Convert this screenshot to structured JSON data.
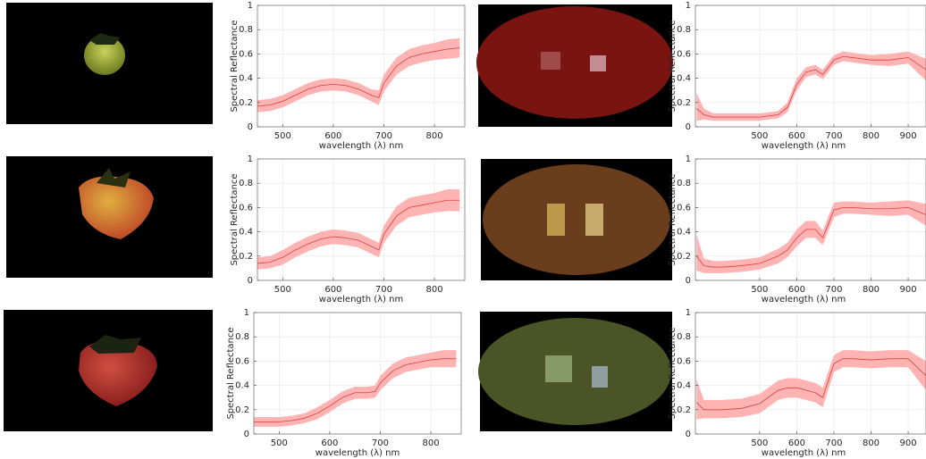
{
  "chart_data": [
    {
      "type": "line",
      "xlabel": "wavelength (λ) nm",
      "ylabel": "Spectral Reflectance",
      "xlim": [
        450,
        860
      ],
      "ylim": [
        0,
        1
      ],
      "xticks": [
        500,
        600,
        700,
        800
      ],
      "yticks": [
        0,
        0.2,
        0.4,
        0.6,
        0.8,
        1
      ],
      "grid": true,
      "x": [
        450,
        475,
        500,
        525,
        550,
        575,
        600,
        625,
        650,
        675,
        690,
        700,
        725,
        750,
        775,
        800,
        825,
        850
      ],
      "series": [
        {
          "color": "#d9413f",
          "band_color": "#ffb3b3",
          "values": [
            0.17,
            0.18,
            0.21,
            0.26,
            0.31,
            0.34,
            0.35,
            0.34,
            0.31,
            0.26,
            0.24,
            0.36,
            0.5,
            0.57,
            0.6,
            0.62,
            0.64,
            0.65
          ],
          "lower": [
            0.12,
            0.13,
            0.16,
            0.21,
            0.26,
            0.29,
            0.3,
            0.29,
            0.26,
            0.21,
            0.18,
            0.29,
            0.43,
            0.5,
            0.53,
            0.55,
            0.56,
            0.57
          ],
          "upper": [
            0.22,
            0.23,
            0.26,
            0.31,
            0.36,
            0.39,
            0.4,
            0.39,
            0.36,
            0.31,
            0.3,
            0.43,
            0.57,
            0.64,
            0.67,
            0.69,
            0.72,
            0.73
          ]
        }
      ]
    },
    {
      "type": "line",
      "xlabel": "wavelength (λ) nm",
      "ylabel": "Spectral Reflectance",
      "xlim": [
        327,
        948
      ],
      "ylim": [
        0,
        1
      ],
      "xticks": [
        500,
        600,
        700,
        800,
        900
      ],
      "yticks": [
        0,
        0.2,
        0.4,
        0.6,
        0.8,
        1
      ],
      "grid": true,
      "x": [
        330,
        350,
        375,
        400,
        450,
        500,
        550,
        575,
        600,
        625,
        650,
        670,
        700,
        725,
        750,
        800,
        850,
        900,
        948
      ],
      "series": [
        {
          "color": "#d9413f",
          "band_color": "#ffb3b3",
          "values": [
            0.15,
            0.1,
            0.08,
            0.08,
            0.08,
            0.08,
            0.1,
            0.16,
            0.35,
            0.45,
            0.47,
            0.43,
            0.55,
            0.58,
            0.57,
            0.55,
            0.55,
            0.57,
            0.47
          ],
          "lower": [
            0.05,
            0.06,
            0.05,
            0.05,
            0.05,
            0.05,
            0.07,
            0.12,
            0.3,
            0.41,
            0.43,
            0.39,
            0.51,
            0.54,
            0.53,
            0.51,
            0.5,
            0.52,
            0.38
          ],
          "upper": [
            0.28,
            0.15,
            0.11,
            0.11,
            0.11,
            0.11,
            0.13,
            0.2,
            0.4,
            0.49,
            0.51,
            0.47,
            0.59,
            0.62,
            0.61,
            0.59,
            0.6,
            0.62,
            0.56
          ]
        }
      ]
    },
    {
      "type": "line",
      "xlabel": "wavelength (λ) nm",
      "ylabel": "Spectral Reflectance",
      "xlim": [
        450,
        860
      ],
      "ylim": [
        0,
        1
      ],
      "xticks": [
        500,
        600,
        700,
        800
      ],
      "yticks": [
        0,
        0.2,
        0.4,
        0.6,
        0.8,
        1
      ],
      "grid": true,
      "x": [
        450,
        475,
        500,
        525,
        550,
        575,
        600,
        625,
        650,
        675,
        690,
        700,
        725,
        750,
        775,
        800,
        825,
        850
      ],
      "series": [
        {
          "color": "#d9413f",
          "band_color": "#ffb3b3",
          "values": [
            0.14,
            0.15,
            0.19,
            0.25,
            0.3,
            0.34,
            0.36,
            0.35,
            0.33,
            0.28,
            0.25,
            0.38,
            0.53,
            0.6,
            0.62,
            0.64,
            0.66,
            0.66
          ],
          "lower": [
            0.09,
            0.1,
            0.13,
            0.19,
            0.24,
            0.28,
            0.3,
            0.29,
            0.27,
            0.22,
            0.19,
            0.31,
            0.45,
            0.52,
            0.54,
            0.56,
            0.57,
            0.57
          ],
          "upper": [
            0.19,
            0.2,
            0.25,
            0.31,
            0.36,
            0.4,
            0.42,
            0.41,
            0.39,
            0.34,
            0.31,
            0.45,
            0.61,
            0.68,
            0.7,
            0.72,
            0.75,
            0.75
          ]
        }
      ]
    },
    {
      "type": "line",
      "xlabel": "wavelength (λ) nm",
      "ylabel": "Spectral Reflectance",
      "xlim": [
        327,
        948
      ],
      "ylim": [
        0,
        1
      ],
      "xticks": [
        500,
        600,
        700,
        800,
        900
      ],
      "yticks": [
        0,
        0.2,
        0.4,
        0.6,
        0.8,
        1
      ],
      "grid": true,
      "x": [
        330,
        350,
        375,
        400,
        450,
        500,
        550,
        575,
        600,
        625,
        650,
        670,
        700,
        725,
        750,
        800,
        850,
        900,
        948
      ],
      "series": [
        {
          "color": "#d9413f",
          "band_color": "#ffb3b3",
          "values": [
            0.2,
            0.12,
            0.11,
            0.11,
            0.12,
            0.14,
            0.2,
            0.25,
            0.35,
            0.42,
            0.42,
            0.35,
            0.58,
            0.6,
            0.6,
            0.59,
            0.59,
            0.6,
            0.54
          ],
          "lower": [
            0.08,
            0.06,
            0.06,
            0.06,
            0.07,
            0.09,
            0.14,
            0.19,
            0.28,
            0.35,
            0.35,
            0.29,
            0.52,
            0.55,
            0.55,
            0.54,
            0.53,
            0.54,
            0.45
          ],
          "upper": [
            0.38,
            0.18,
            0.16,
            0.16,
            0.17,
            0.19,
            0.26,
            0.31,
            0.42,
            0.49,
            0.49,
            0.41,
            0.64,
            0.65,
            0.65,
            0.64,
            0.65,
            0.66,
            0.63
          ]
        }
      ]
    },
    {
      "type": "line",
      "xlabel": "wavelength (λ) nm",
      "ylabel": "Spectral Reflectance",
      "xlim": [
        450,
        860
      ],
      "ylim": [
        0,
        1
      ],
      "xticks": [
        500,
        600,
        700,
        800
      ],
      "yticks": [
        0,
        0.2,
        0.4,
        0.6,
        0.8,
        1
      ],
      "grid": true,
      "x": [
        450,
        475,
        500,
        525,
        550,
        575,
        600,
        625,
        650,
        675,
        690,
        700,
        725,
        750,
        775,
        800,
        825,
        850
      ],
      "series": [
        {
          "color": "#d9413f",
          "band_color": "#ffb3b3",
          "values": [
            0.1,
            0.1,
            0.1,
            0.11,
            0.13,
            0.17,
            0.23,
            0.3,
            0.34,
            0.34,
            0.35,
            0.42,
            0.52,
            0.57,
            0.59,
            0.61,
            0.62,
            0.62
          ],
          "lower": [
            0.06,
            0.06,
            0.06,
            0.07,
            0.09,
            0.12,
            0.18,
            0.25,
            0.29,
            0.29,
            0.3,
            0.36,
            0.46,
            0.51,
            0.53,
            0.55,
            0.55,
            0.55
          ],
          "upper": [
            0.14,
            0.14,
            0.14,
            0.15,
            0.17,
            0.22,
            0.28,
            0.35,
            0.39,
            0.39,
            0.4,
            0.48,
            0.58,
            0.63,
            0.65,
            0.67,
            0.69,
            0.69
          ]
        }
      ]
    },
    {
      "type": "line",
      "xlabel": "wavelength (λ) nm",
      "ylabel": "Spectral Reflectance",
      "xlim": [
        327,
        948
      ],
      "ylim": [
        0,
        1
      ],
      "xticks": [
        500,
        600,
        700,
        800,
        900
      ],
      "yticks": [
        0,
        0.2,
        0.4,
        0.6,
        0.8,
        1
      ],
      "grid": true,
      "x": [
        330,
        350,
        375,
        400,
        450,
        500,
        550,
        575,
        600,
        625,
        650,
        670,
        700,
        725,
        750,
        800,
        850,
        900,
        948
      ],
      "series": [
        {
          "color": "#d9413f",
          "band_color": "#ffb3b3",
          "values": [
            0.26,
            0.2,
            0.2,
            0.2,
            0.21,
            0.25,
            0.36,
            0.38,
            0.38,
            0.36,
            0.34,
            0.3,
            0.58,
            0.62,
            0.62,
            0.61,
            0.62,
            0.62,
            0.48
          ],
          "lower": [
            0.12,
            0.13,
            0.13,
            0.13,
            0.14,
            0.17,
            0.28,
            0.3,
            0.3,
            0.28,
            0.26,
            0.22,
            0.51,
            0.55,
            0.55,
            0.54,
            0.55,
            0.55,
            0.36
          ],
          "upper": [
            0.45,
            0.28,
            0.28,
            0.28,
            0.29,
            0.33,
            0.44,
            0.46,
            0.46,
            0.44,
            0.42,
            0.38,
            0.65,
            0.69,
            0.69,
            0.68,
            0.69,
            0.69,
            0.6
          ]
        }
      ]
    }
  ]
}
